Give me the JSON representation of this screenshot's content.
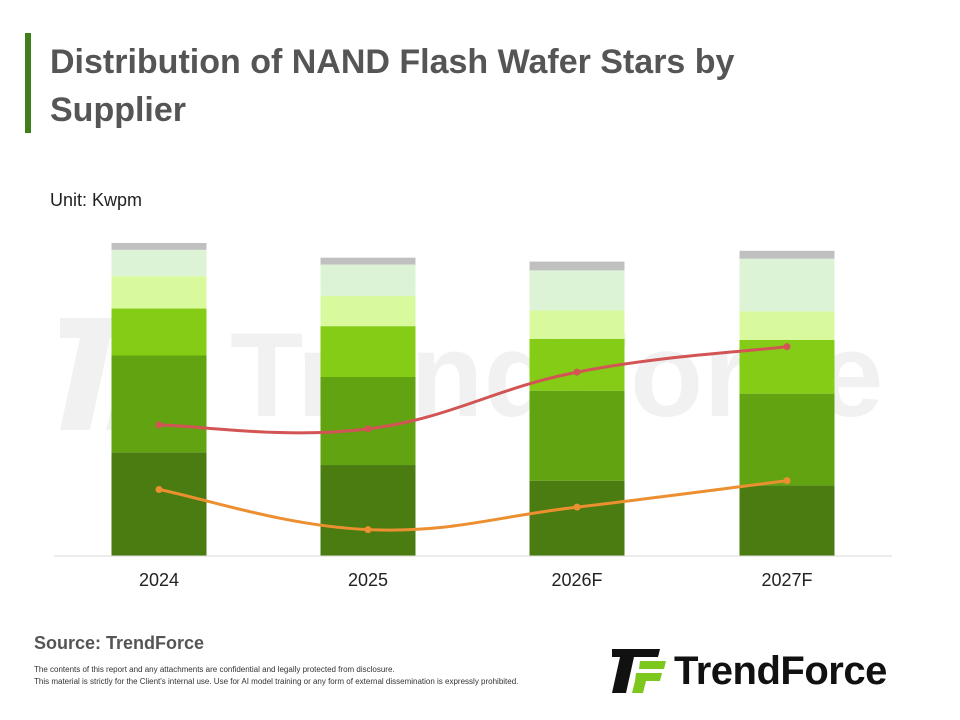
{
  "title": "Distribution of NAND Flash Wafer Stars by Supplier",
  "unit_label": "Unit: Kwpm",
  "source": "Source: TrendForce",
  "disclaimer": [
    "The contents of this report and any attachments are confidential and legally protected from disclosure.",
    "This material is strictly for the Client's internal use. Use for AI model training or any form of external dissemination is expressly prohibited."
  ],
  "logo_text": "TrendForce",
  "watermark_text": "TrendForce",
  "colors": {
    "accent": "#3f7f1a",
    "segments": [
      "#4a7c12",
      "#62a312",
      "#84cc16",
      "#d9f99d",
      "#dcf3d6",
      "#c0c0c0"
    ],
    "line_red": "#d35454",
    "line_orange": "#ec8f31",
    "axis": "#d9d9d9"
  },
  "chart_data": {
    "type": "bar",
    "stacked": true,
    "categories": [
      "2024",
      "2025",
      "2026F",
      "2027F"
    ],
    "ylim": [
      0,
      1600
    ],
    "grid": false,
    "legend": "none",
    "series": [
      {
        "values": [
          530,
          465,
          385,
          360
        ]
      },
      {
        "values": [
          495,
          450,
          460,
          470
        ]
      },
      {
        "values": [
          240,
          260,
          265,
          275
        ]
      },
      {
        "values": [
          165,
          155,
          145,
          145
        ]
      },
      {
        "values": [
          135,
          160,
          205,
          270
        ]
      },
      {
        "values": [
          35,
          35,
          45,
          40
        ]
      }
    ],
    "lines": [
      {
        "values": [
          670,
          650,
          940,
          1070
        ]
      },
      {
        "values": [
          340,
          135,
          250,
          385
        ]
      }
    ]
  }
}
